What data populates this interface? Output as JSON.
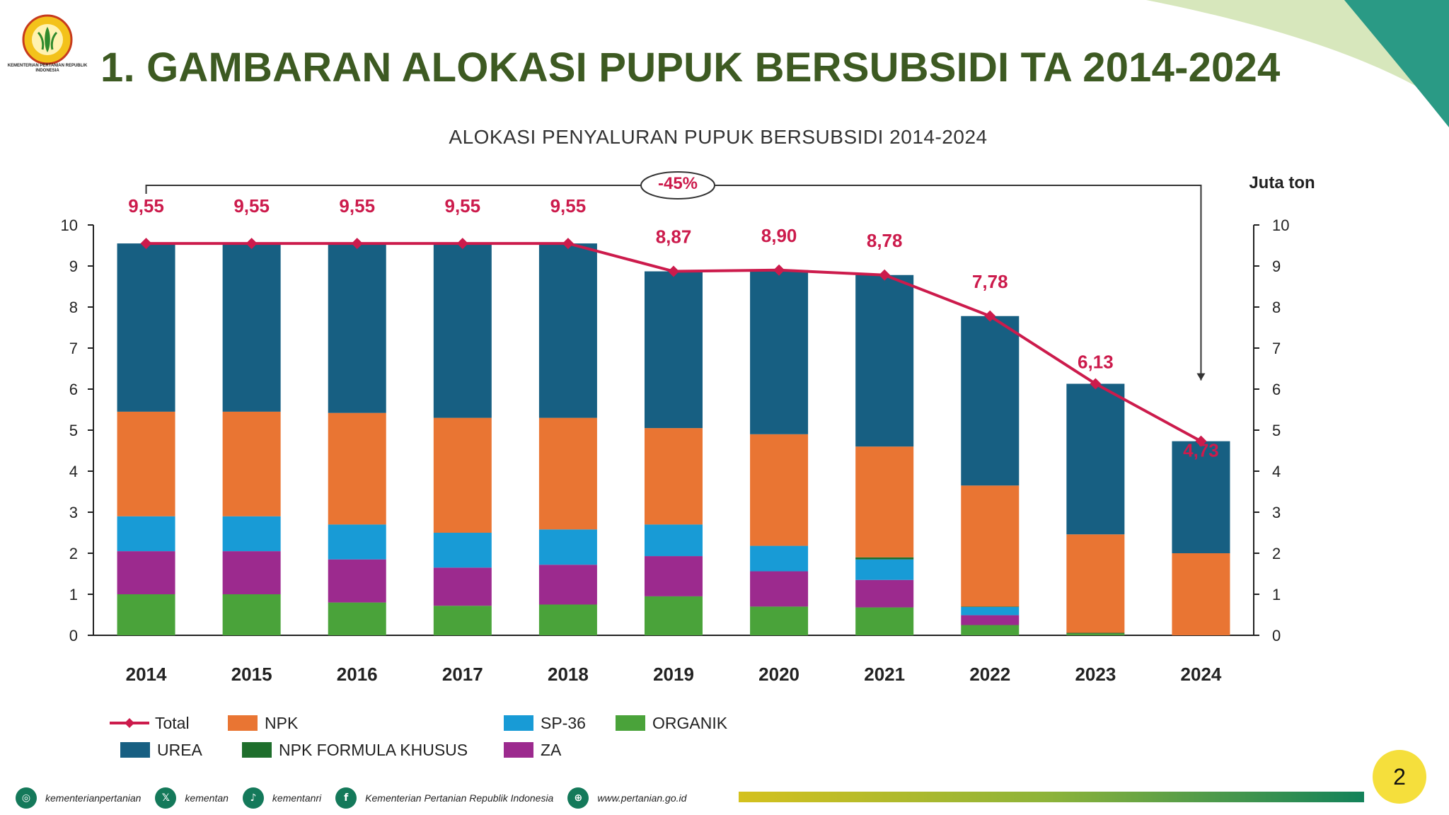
{
  "page": {
    "title": "1. GAMBARAN ALOKASI PUPUK BERSUBSIDI TA 2014-2024",
    "logo_text": "KEMENTERIAN PERTANIAN REPUBLIK INDONESIA",
    "page_number": "2"
  },
  "footer": [
    {
      "icon": "instagram-icon",
      "glyph": "◎",
      "label": "kementerianpertanian"
    },
    {
      "icon": "x-twitter-icon",
      "glyph": "𝕏",
      "label": "kementan"
    },
    {
      "icon": "tiktok-icon",
      "glyph": "♪",
      "label": "kementanri"
    },
    {
      "icon": "facebook-icon",
      "glyph": "f",
      "label": "Kementerian Pertanian Republik Indonesia"
    },
    {
      "icon": "globe-icon",
      "glyph": "⊕",
      "label": "www.pertanian.go.id"
    }
  ],
  "chart_data": {
    "type": "bar",
    "title": "ALOKASI PENYALURAN PUPUK BERSUBSIDI 2014-2024",
    "unit_label": "Juta ton",
    "annotation": "-45%",
    "ylim": [
      0,
      10
    ],
    "yticks": [
      0,
      1,
      2,
      3,
      4,
      5,
      6,
      7,
      8,
      9,
      10
    ],
    "categories": [
      "2014",
      "2015",
      "2016",
      "2017",
      "2018",
      "2019",
      "2020",
      "2021",
      "2022",
      "2023",
      "2024"
    ],
    "series": [
      {
        "name": "ORGANIK",
        "color": "#4aa33a",
        "values": [
          1.0,
          1.0,
          0.8,
          0.72,
          0.75,
          0.95,
          0.7,
          0.68,
          0.25,
          0.04,
          0.0
        ]
      },
      {
        "name": "ZA",
        "color": "#9c2a8e",
        "values": [
          1.05,
          1.05,
          1.05,
          0.93,
          0.97,
          0.98,
          0.86,
          0.67,
          0.24,
          0.0,
          0.0
        ]
      },
      {
        "name": "SP-36",
        "color": "#189bd6",
        "values": [
          0.85,
          0.85,
          0.85,
          0.85,
          0.86,
          0.77,
          0.62,
          0.5,
          0.2,
          0.0,
          0.0
        ]
      },
      {
        "name": "NPK FORMULA KHUSUS",
        "color": "#1e6e2c",
        "values": [
          0.0,
          0.0,
          0.0,
          0.0,
          0.0,
          0.0,
          0.0,
          0.05,
          0.01,
          0.02,
          0.0
        ]
      },
      {
        "name": "NPK",
        "color": "#e97533",
        "values": [
          2.55,
          2.55,
          2.72,
          2.8,
          2.72,
          2.35,
          2.72,
          2.7,
          2.95,
          2.4,
          2.0
        ]
      },
      {
        "name": "UREA",
        "color": "#175f82",
        "values": [
          4.1,
          4.1,
          4.13,
          4.25,
          4.25,
          3.82,
          4.0,
          4.18,
          4.13,
          3.67,
          2.73
        ]
      }
    ],
    "total": {
      "name": "Total",
      "color": "#cc1b4c",
      "values": [
        9.55,
        9.55,
        9.55,
        9.55,
        9.55,
        8.87,
        8.9,
        8.78,
        7.78,
        6.13,
        4.73
      ],
      "labels": [
        "9,55",
        "9,55",
        "9,55",
        "9,55",
        "9,55",
        "8,87",
        "8,90",
        "8,78",
        "7,78",
        "6,13",
        "4,73"
      ]
    },
    "legend_order": [
      "Total",
      "NPK",
      "SP-36",
      "ORGANIK",
      "UREA",
      "NPK FORMULA KHUSUS",
      "ZA"
    ]
  }
}
